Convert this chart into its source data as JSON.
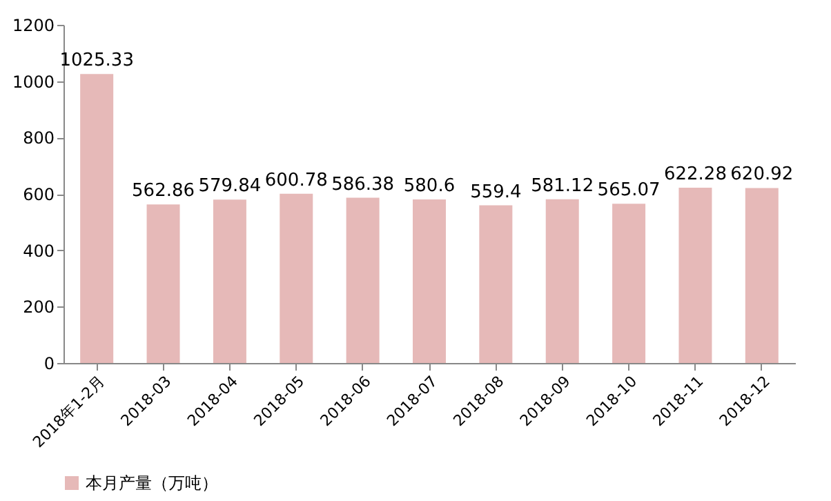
{
  "chart_data": {
    "type": "bar",
    "categories": [
      "2018年1-2月",
      "2018-03",
      "2018-04",
      "2018-05",
      "2018-06",
      "2018-07",
      "2018-08",
      "2018-09",
      "2018-10",
      "2018-11",
      "2018-12"
    ],
    "series": [
      {
        "name": "本月产量（万吨）",
        "color": "#e6b9b8",
        "values": [
          1025.33,
          562.86,
          579.84,
          600.78,
          586.38,
          580.6,
          559.4,
          581.12,
          565.07,
          622.28,
          620.92
        ]
      }
    ],
    "ylim": [
      0,
      1200
    ],
    "yticks": [
      0,
      200,
      400,
      600,
      800,
      1000,
      1200
    ],
    "data_labels": true,
    "legend": "bottom"
  }
}
